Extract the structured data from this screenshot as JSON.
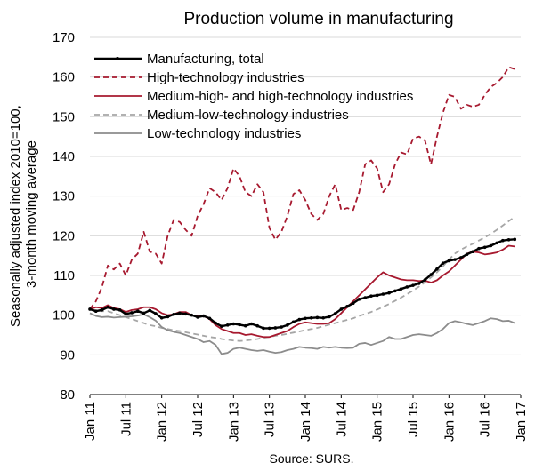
{
  "chart_data": {
    "type": "line",
    "title": "Production volume in manufacturing",
    "ylabel": "Seasonally adjusted index 2010=100, 3-month moving average",
    "xlabel": "",
    "ylim": [
      80,
      170
    ],
    "yticks": [
      80,
      90,
      100,
      110,
      120,
      130,
      140,
      150,
      160,
      170
    ],
    "x_tick_labels": [
      "Jan 11",
      "Jul 11",
      "Jan 12",
      "Jul 12",
      "Jan 13",
      "Jul 13",
      "Jan 14",
      "Jul 14",
      "Jan 15",
      "Jul 15",
      "Jan 16",
      "Jul 16",
      "Jan 17"
    ],
    "x_start": "2011-01",
    "x_end": "2016-12",
    "grid": "horizontal",
    "legend_position": "top-left",
    "source": "Source: SURS.",
    "series": [
      {
        "name": "Manufacturing, total",
        "color": "#000000",
        "style": "solid-markers",
        "values": [
          101.5,
          101.0,
          101.3,
          102.0,
          101.5,
          101.3,
          100.3,
          100.6,
          101.0,
          100.5,
          101.2,
          100.4,
          99.3,
          99.6,
          100.2,
          100.5,
          100.3,
          100.0,
          99.5,
          99.8,
          99.2,
          98.0,
          97.2,
          97.5,
          97.8,
          97.6,
          97.3,
          97.8,
          97.3,
          96.7,
          96.7,
          96.8,
          97.0,
          97.5,
          98.3,
          98.9,
          99.2,
          99.3,
          99.4,
          99.3,
          99.6,
          100.4,
          101.5,
          102.2,
          103.0,
          104.0,
          104.4,
          104.8,
          105.0,
          105.3,
          105.6,
          106.1,
          106.6,
          107.1,
          107.5,
          108.0,
          108.9,
          110.2,
          111.6,
          113.1,
          113.7,
          114.0,
          114.5,
          115.3,
          116.0,
          116.8,
          117.1,
          117.5,
          118.2,
          118.8,
          119.0,
          119.1
        ]
      },
      {
        "name": "High-technology industries",
        "color": "#a7192f",
        "style": "dashed",
        "values": [
          101.5,
          103.5,
          107.0,
          112.5,
          111.5,
          113.0,
          110.0,
          114.0,
          115.5,
          121.0,
          116.0,
          115.5,
          113.0,
          120.0,
          124.0,
          123.5,
          121.5,
          120.0,
          125.0,
          128.0,
          132.0,
          131.0,
          129.0,
          132.0,
          137.0,
          135.0,
          131.0,
          130.0,
          133.0,
          131.0,
          122.0,
          119.0,
          121.0,
          125.0,
          130.5,
          131.5,
          129.0,
          125.5,
          124.0,
          125.5,
          130.0,
          133.0,
          126.5,
          127.0,
          126.5,
          131.0,
          138.0,
          139.0,
          137.0,
          131.0,
          133.0,
          138.0,
          141.0,
          140.5,
          144.5,
          145.0,
          144.0,
          138.0,
          145.0,
          151.0,
          155.5,
          155.0,
          152.0,
          153.0,
          152.5,
          153.0,
          155.5,
          157.5,
          158.5,
          160.0,
          162.5,
          162.0
        ]
      },
      {
        "name": "Medium-high- and high-technology industries",
        "color": "#a7192f",
        "style": "solid",
        "values": [
          101.5,
          102.0,
          101.8,
          102.5,
          101.8,
          101.5,
          100.8,
          101.3,
          101.5,
          102.0,
          102.0,
          101.5,
          100.5,
          100.0,
          100.2,
          100.8,
          100.8,
          100.0,
          99.7,
          99.8,
          99.0,
          97.5,
          96.5,
          96.0,
          95.5,
          95.5,
          95.0,
          95.2,
          94.8,
          94.5,
          94.5,
          95.0,
          95.5,
          96.0,
          97.0,
          97.8,
          98.2,
          98.0,
          97.8,
          97.8,
          98.0,
          99.0,
          100.5,
          102.0,
          103.5,
          105.0,
          106.5,
          108.0,
          109.5,
          110.8,
          110.0,
          109.5,
          109.0,
          108.8,
          108.8,
          108.6,
          108.7,
          108.2,
          108.8,
          110.0,
          111.0,
          112.5,
          114.0,
          115.5,
          116.0,
          115.8,
          115.3,
          115.5,
          115.8,
          116.5,
          117.5,
          117.3
        ]
      },
      {
        "name": "Medium-low-technology industries",
        "color": "#a6a6a6",
        "style": "dashed",
        "values": [
          101.5,
          101.2,
          101.0,
          101.0,
          100.5,
          100.0,
          99.5,
          99.0,
          98.5,
          98.0,
          97.5,
          97.2,
          96.8,
          96.5,
          96.2,
          96.0,
          95.7,
          95.4,
          95.1,
          94.8,
          94.5,
          94.3,
          94.0,
          93.8,
          93.6,
          93.5,
          93.6,
          93.8,
          94.0,
          94.3,
          94.5,
          94.8,
          95.0,
          95.3,
          95.6,
          95.9,
          96.2,
          96.5,
          96.8,
          97.2,
          97.6,
          98.0,
          98.4,
          98.8,
          99.2,
          99.8,
          100.3,
          100.8,
          101.4,
          102.1,
          102.8,
          103.6,
          104.4,
          105.3,
          106.2,
          107.2,
          108.3,
          109.5,
          110.8,
          112.3,
          114.0,
          115.5,
          116.5,
          117.3,
          118.0,
          118.8,
          119.6,
          120.5,
          121.5,
          122.6,
          123.7,
          124.8
        ]
      },
      {
        "name": "Low-technology industries",
        "color": "#8c8c8c",
        "style": "solid",
        "values": [
          100.5,
          99.8,
          99.5,
          99.6,
          99.4,
          99.5,
          99.6,
          99.7,
          99.9,
          100.2,
          99.5,
          98.6,
          97.0,
          96.2,
          95.8,
          95.5,
          95.0,
          94.5,
          94.0,
          93.2,
          93.5,
          92.5,
          90.2,
          90.5,
          91.5,
          91.8,
          91.5,
          91.2,
          91.0,
          91.2,
          90.8,
          90.5,
          90.7,
          91.2,
          91.5,
          92.0,
          91.8,
          91.7,
          91.5,
          92.0,
          91.8,
          92.0,
          91.8,
          91.7,
          91.8,
          92.8,
          93.0,
          92.5,
          93.0,
          93.5,
          94.5,
          94.0,
          94.0,
          94.5,
          95.0,
          95.2,
          95.0,
          94.8,
          95.5,
          96.5,
          98.0,
          98.5,
          98.2,
          97.8,
          97.5,
          98.0,
          98.5,
          99.2,
          99.0,
          98.5,
          98.6,
          98.0
        ]
      }
    ]
  }
}
